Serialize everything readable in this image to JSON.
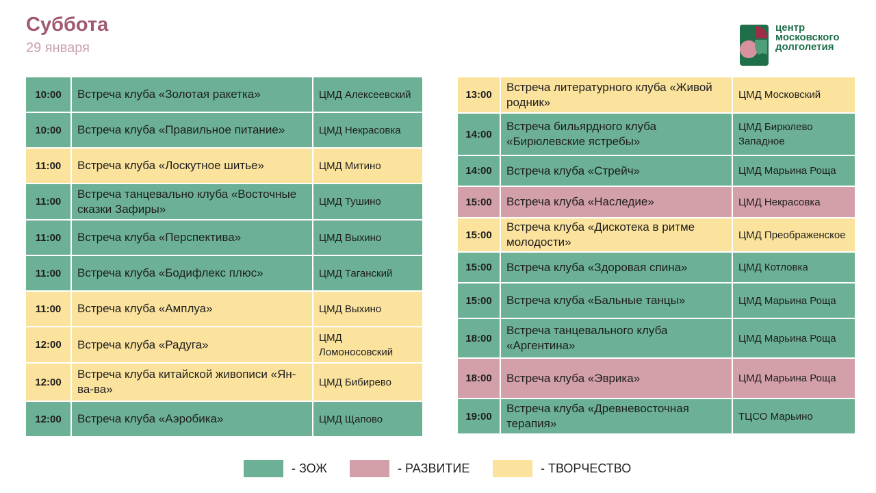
{
  "header": {
    "title": "Суббота",
    "subtitle": "29 января"
  },
  "logo": {
    "lines": [
      "центр",
      "московского",
      "долголетия"
    ],
    "colors": {
      "green": "#1f6f4a",
      "red": "#9c2f45",
      "pink": "#d7929e"
    }
  },
  "categories": {
    "zoj": {
      "label": "- ЗОЖ",
      "color": "#6cb195"
    },
    "razv": {
      "label": "- РАЗВИТИЕ",
      "color": "#d3a0aa"
    },
    "tvor": {
      "label": "- ТВОРЧЕСТВО",
      "color": "#fbe39d"
    }
  },
  "left_schedule": [
    {
      "time": "10:00",
      "event": "Встреча клуба «Золотая ракетка»",
      "venue": "ЦМД Алексеевский",
      "category": "zoj"
    },
    {
      "time": "10:00",
      "event": "Встреча клуба «Правильное питание»",
      "venue": "ЦМД Некрасовка",
      "category": "zoj"
    },
    {
      "time": "11:00",
      "event": "Встреча клуба «Лоскутное шитье»",
      "venue": "ЦМД Митино",
      "category": "tvor"
    },
    {
      "time": "11:00",
      "event": "Встреча танцевально клуба «Восточные сказки Зафиры»",
      "venue": "ЦМД Тушино",
      "category": "zoj"
    },
    {
      "time": "11:00",
      "event": "Встреча клуба «Перспектива»",
      "venue": "ЦМД Выхино",
      "category": "zoj"
    },
    {
      "time": "11:00",
      "event": "Встреча клуба «Бодифлекс плюс»",
      "venue": "ЦМД Таганский",
      "category": "zoj"
    },
    {
      "time": "11:00",
      "event": "Встреча клуба «Амплуа»",
      "venue": "ЦМД Выхино",
      "category": "tvor"
    },
    {
      "time": "12:00",
      "event": "Встреча клуба «Радуга»",
      "venue": "ЦМД Ломоносовский",
      "category": "tvor"
    },
    {
      "time": "12:00",
      "event": "Встреча клуба китайской живописи «Ян-ва-ва»",
      "venue": "ЦМД Бибирево",
      "category": "tvor"
    },
    {
      "time": "12:00",
      "event": "Встреча клуба «Аэробика»",
      "venue": "ЦМД Щапово",
      "category": "zoj"
    }
  ],
  "right_schedule": [
    {
      "time": "13:00",
      "event": "Встреча литературного клуба «Живой родник»",
      "venue": "ЦМД Московский",
      "category": "tvor"
    },
    {
      "time": "14:00",
      "event": "Встреча бильярдного клуба «Бирюлевские ястребы»",
      "venue": "ЦМД Бирюлево Западное",
      "category": "zoj"
    },
    {
      "time": "14:00",
      "event": "Встреча клуба «Стрейч»",
      "venue": "ЦМД Марьина Роща",
      "category": "zoj"
    },
    {
      "time": "15:00",
      "event": "Встреча клуба «Наследие»",
      "venue": "ЦМД Некрасовка",
      "category": "razv"
    },
    {
      "time": "15:00",
      "event": "Встреча клуба «Дискотека в ритме молодости»",
      "venue": "ЦМД Преображенское",
      "category": "tvor"
    },
    {
      "time": "15:00",
      "event": "Встреча клуба «Здоровая спина»",
      "venue": "ЦМД Котловка",
      "category": "zoj"
    },
    {
      "time": "15:00",
      "event": "Встреча клуба «Бальные танцы»",
      "venue": "ЦМД Марьина Роща",
      "category": "zoj"
    },
    {
      "time": "18:00",
      "event": "Встреча танцевального клуба «Аргентина»",
      "venue": "ЦМД Марьина Роща",
      "category": "zoj"
    },
    {
      "time": "18:00",
      "event": "Встреча клуба «Эврика»",
      "venue": "ЦМД Марьина Роща",
      "category": "razv"
    },
    {
      "time": "19:00",
      "event": "Встреча клуба «Древневосточная терапия»",
      "venue": "ТЦСО Марьино",
      "category": "zoj"
    }
  ],
  "legend_order": [
    "zoj",
    "razv",
    "tvor"
  ]
}
